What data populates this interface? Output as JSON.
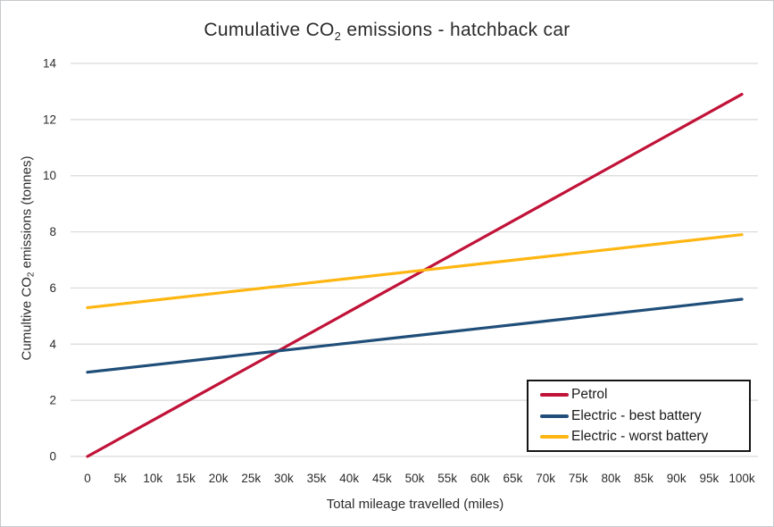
{
  "window": {
    "background": "#ffffff",
    "border_color": "#c6cacd"
  },
  "title": {
    "prefix": "Cumulative CO",
    "subscript": "2",
    "suffix": " emissions - hatchback car"
  },
  "axes": {
    "x": {
      "title": "Total mileage travelled (miles)",
      "tick_labels": [
        "0",
        "5k",
        "10k",
        "15k",
        "20k",
        "25k",
        "30k",
        "35k",
        "40k",
        "45k",
        "50k",
        "55k",
        "60k",
        "65k",
        "70k",
        "75k",
        "80k",
        "85k",
        "90k",
        "95k",
        "100k"
      ],
      "tick_values": [
        0,
        5000,
        10000,
        15000,
        20000,
        25000,
        30000,
        35000,
        40000,
        45000,
        50000,
        55000,
        60000,
        65000,
        70000,
        75000,
        80000,
        85000,
        90000,
        95000,
        100000
      ],
      "min": 0,
      "max": 100000
    },
    "y": {
      "title_prefix": "Cumultive CO",
      "title_subscript": "2",
      "title_suffix": " emissions (tonnes)",
      "tick_labels": [
        "0",
        "2",
        "4",
        "6",
        "8",
        "10",
        "12",
        "14"
      ],
      "tick_values": [
        0,
        2,
        4,
        6,
        8,
        10,
        12,
        14
      ],
      "min": 0,
      "max": 14
    }
  },
  "legend": {
    "position": "inside-bottom-right",
    "items": [
      {
        "label": "Petrol",
        "color": "#C11238"
      },
      {
        "label": "Electric - best battery",
        "color": "#1F4E79"
      },
      {
        "label": "Electric - worst battery",
        "color": "#FFB612"
      }
    ]
  },
  "chart_data": {
    "type": "line",
    "title": "Cumulative CO2 emissions - hatchback car",
    "xlabel": "Total mileage travelled (miles)",
    "ylabel": "Cumultive CO2 emissions (tonnes)",
    "x": [
      0,
      10000,
      20000,
      30000,
      40000,
      50000,
      60000,
      70000,
      80000,
      90000,
      100000
    ],
    "series": [
      {
        "name": "Petrol",
        "color": "#C11238",
        "values": [
          0,
          1.29,
          2.58,
          3.87,
          5.16,
          6.45,
          7.74,
          9.03,
          10.32,
          11.61,
          12.9
        ]
      },
      {
        "name": "Electric - best battery",
        "color": "#1F4E79",
        "values": [
          3.0,
          3.26,
          3.52,
          3.78,
          4.04,
          4.3,
          4.56,
          4.82,
          5.08,
          5.34,
          5.6
        ]
      },
      {
        "name": "Electric - worst battery",
        "color": "#FFB612",
        "values": [
          5.3,
          5.56,
          5.82,
          6.08,
          6.34,
          6.6,
          6.86,
          7.12,
          7.38,
          7.64,
          7.9
        ]
      }
    ],
    "xlim": [
      0,
      100000
    ],
    "ylim": [
      0,
      14
    ],
    "grid": "horizontal gridlines every 2 tonnes",
    "grid_color": "#D9D9D9",
    "legend_position": "inside bottom-right"
  },
  "styles": {
    "text_color": "#2b2b2b",
    "grid_color": "#D9D9D9",
    "line_width": 3.2,
    "legend_border_color": "#141414"
  }
}
